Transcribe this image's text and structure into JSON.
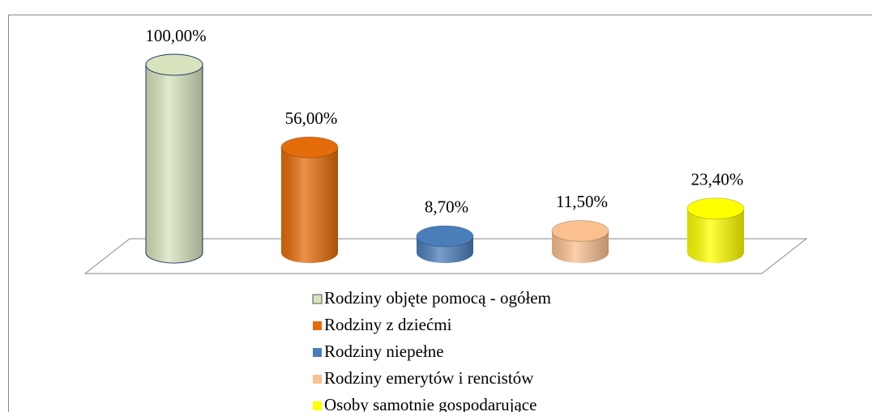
{
  "chart_data": {
    "type": "bar",
    "series": [
      {
        "name": "Rodziny objęte pomocą - ogółem",
        "color": "#d7e4bd",
        "values": [
          100
        ],
        "value_labels": [
          "100,00%"
        ]
      },
      {
        "name": "Rodziny z dziećmi",
        "color": "#e46c0a",
        "values": [
          56
        ],
        "value_labels": [
          "56,00%"
        ]
      },
      {
        "name": "Rodziny niepełne",
        "color": "#4a7ebb",
        "values": [
          8.7
        ],
        "value_labels": [
          "8,70%"
        ]
      },
      {
        "name": "Rodziny emerytów i rencistów",
        "color": "#fac090",
        "values": [
          11.5
        ],
        "value_labels": [
          "11,50%"
        ]
      },
      {
        "name": "Osoby samotnie gospodarujące",
        "color": "#ffff00",
        "values": [
          23.4
        ],
        "value_labels": [
          "23,40%"
        ]
      }
    ]
  }
}
